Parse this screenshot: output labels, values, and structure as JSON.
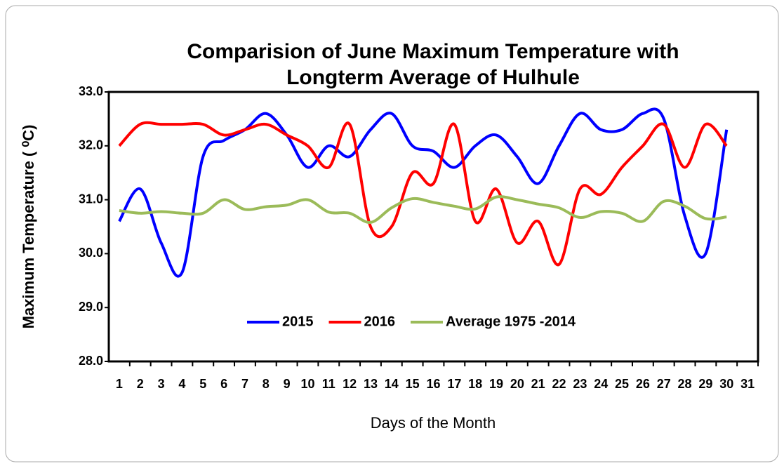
{
  "chart_data": {
    "type": "line",
    "title": [
      "Comparision of June Maximum Temperature with",
      "Longterm Average of Hulhule"
    ],
    "y_label": "Maximum Temperature ( ⁰C)",
    "x_label": "Days of the Month",
    "categories": [
      "1",
      "2",
      "3",
      "4",
      "5",
      "6",
      "7",
      "8",
      "9",
      "10",
      "11",
      "12",
      "13",
      "14",
      "15",
      "16",
      "17",
      "18",
      "19",
      "20",
      "21",
      "22",
      "23",
      "24",
      "25",
      "26",
      "27",
      "28",
      "29",
      "30",
      "31"
    ],
    "series": [
      {
        "name": "2015",
        "color": "#0000ff",
        "values": [
          30.6,
          31.2,
          30.2,
          29.65,
          31.8,
          32.1,
          32.3,
          32.6,
          32.2,
          31.6,
          32.0,
          31.8,
          32.3,
          32.6,
          32.0,
          31.9,
          31.6,
          32.0,
          32.2,
          31.8,
          31.3,
          32.0,
          32.6,
          32.3,
          32.3,
          32.6,
          32.5,
          30.7,
          30.0,
          32.3,
          null
        ]
      },
      {
        "name": "2016",
        "color": "#ff0000",
        "values": [
          32.0,
          32.4,
          32.4,
          32.4,
          32.4,
          32.2,
          32.3,
          32.4,
          32.2,
          32.0,
          31.6,
          32.4,
          30.5,
          30.5,
          31.5,
          31.3,
          32.4,
          30.6,
          31.2,
          30.2,
          30.6,
          29.8,
          31.2,
          31.1,
          31.6,
          32.0,
          32.4,
          31.6,
          32.4,
          32.0,
          null
        ]
      },
      {
        "name": "Average 1975 -2014",
        "color": "#9bbb59",
        "values": [
          30.8,
          30.75,
          30.78,
          30.75,
          30.75,
          31.0,
          30.82,
          30.87,
          30.9,
          31.0,
          30.77,
          30.75,
          30.58,
          30.85,
          31.02,
          30.95,
          30.88,
          30.83,
          31.05,
          31.0,
          30.92,
          30.85,
          30.67,
          30.78,
          30.75,
          30.6,
          30.97,
          30.88,
          30.65,
          30.68,
          null
        ]
      }
    ],
    "ylim": [
      28,
      33
    ],
    "yticks": [
      {
        "value": 28,
        "label": "28.0"
      },
      {
        "value": 29,
        "label": "29.0"
      },
      {
        "value": 30,
        "label": "30.0"
      },
      {
        "value": 31,
        "label": "31.0"
      },
      {
        "value": 32,
        "label": "32.0"
      },
      {
        "value": 33,
        "label": "33.0"
      }
    ],
    "smooth": true,
    "grid": false,
    "legend": "inside-bottom"
  }
}
